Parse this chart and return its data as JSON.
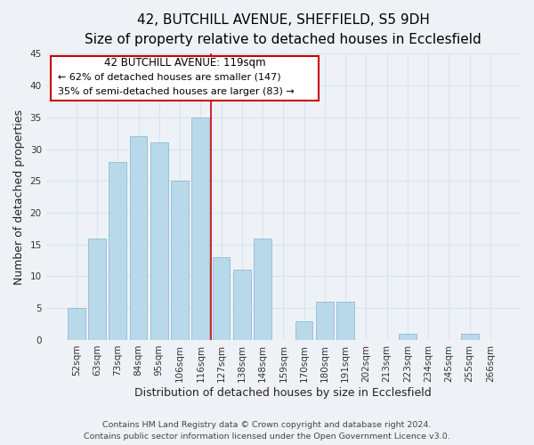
{
  "title": "42, BUTCHILL AVENUE, SHEFFIELD, S5 9DH",
  "subtitle": "Size of property relative to detached houses in Ecclesfield",
  "xlabel": "Distribution of detached houses by size in Ecclesfield",
  "ylabel": "Number of detached properties",
  "categories": [
    "52sqm",
    "63sqm",
    "73sqm",
    "84sqm",
    "95sqm",
    "106sqm",
    "116sqm",
    "127sqm",
    "138sqm",
    "148sqm",
    "159sqm",
    "170sqm",
    "180sqm",
    "191sqm",
    "202sqm",
    "213sqm",
    "223sqm",
    "234sqm",
    "245sqm",
    "255sqm",
    "266sqm"
  ],
  "values": [
    5,
    16,
    28,
    32,
    31,
    25,
    35,
    13,
    11,
    16,
    0,
    3,
    6,
    6,
    0,
    0,
    1,
    0,
    0,
    1,
    0
  ],
  "bar_color": "#b8d9ea",
  "bar_edge_color": "#90bcd4",
  "highlight_index": 6,
  "highlight_line_color": "#cc0000",
  "ylim": [
    0,
    45
  ],
  "yticks": [
    0,
    5,
    10,
    15,
    20,
    25,
    30,
    35,
    40,
    45
  ],
  "annotation_title": "42 BUTCHILL AVENUE: 119sqm",
  "annotation_line1": "← 62% of detached houses are smaller (147)",
  "annotation_line2": "35% of semi-detached houses are larger (83) →",
  "annotation_box_color": "#ffffff",
  "annotation_box_edge": "#cc0000",
  "footer_line1": "Contains HM Land Registry data © Crown copyright and database right 2024.",
  "footer_line2": "Contains public sector information licensed under the Open Government Licence v3.0.",
  "background_color": "#eef2f7",
  "grid_color": "#d8e4ee",
  "title_fontsize": 11,
  "subtitle_fontsize": 9.5,
  "axis_label_fontsize": 9,
  "tick_fontsize": 7.5,
  "footer_fontsize": 6.8
}
